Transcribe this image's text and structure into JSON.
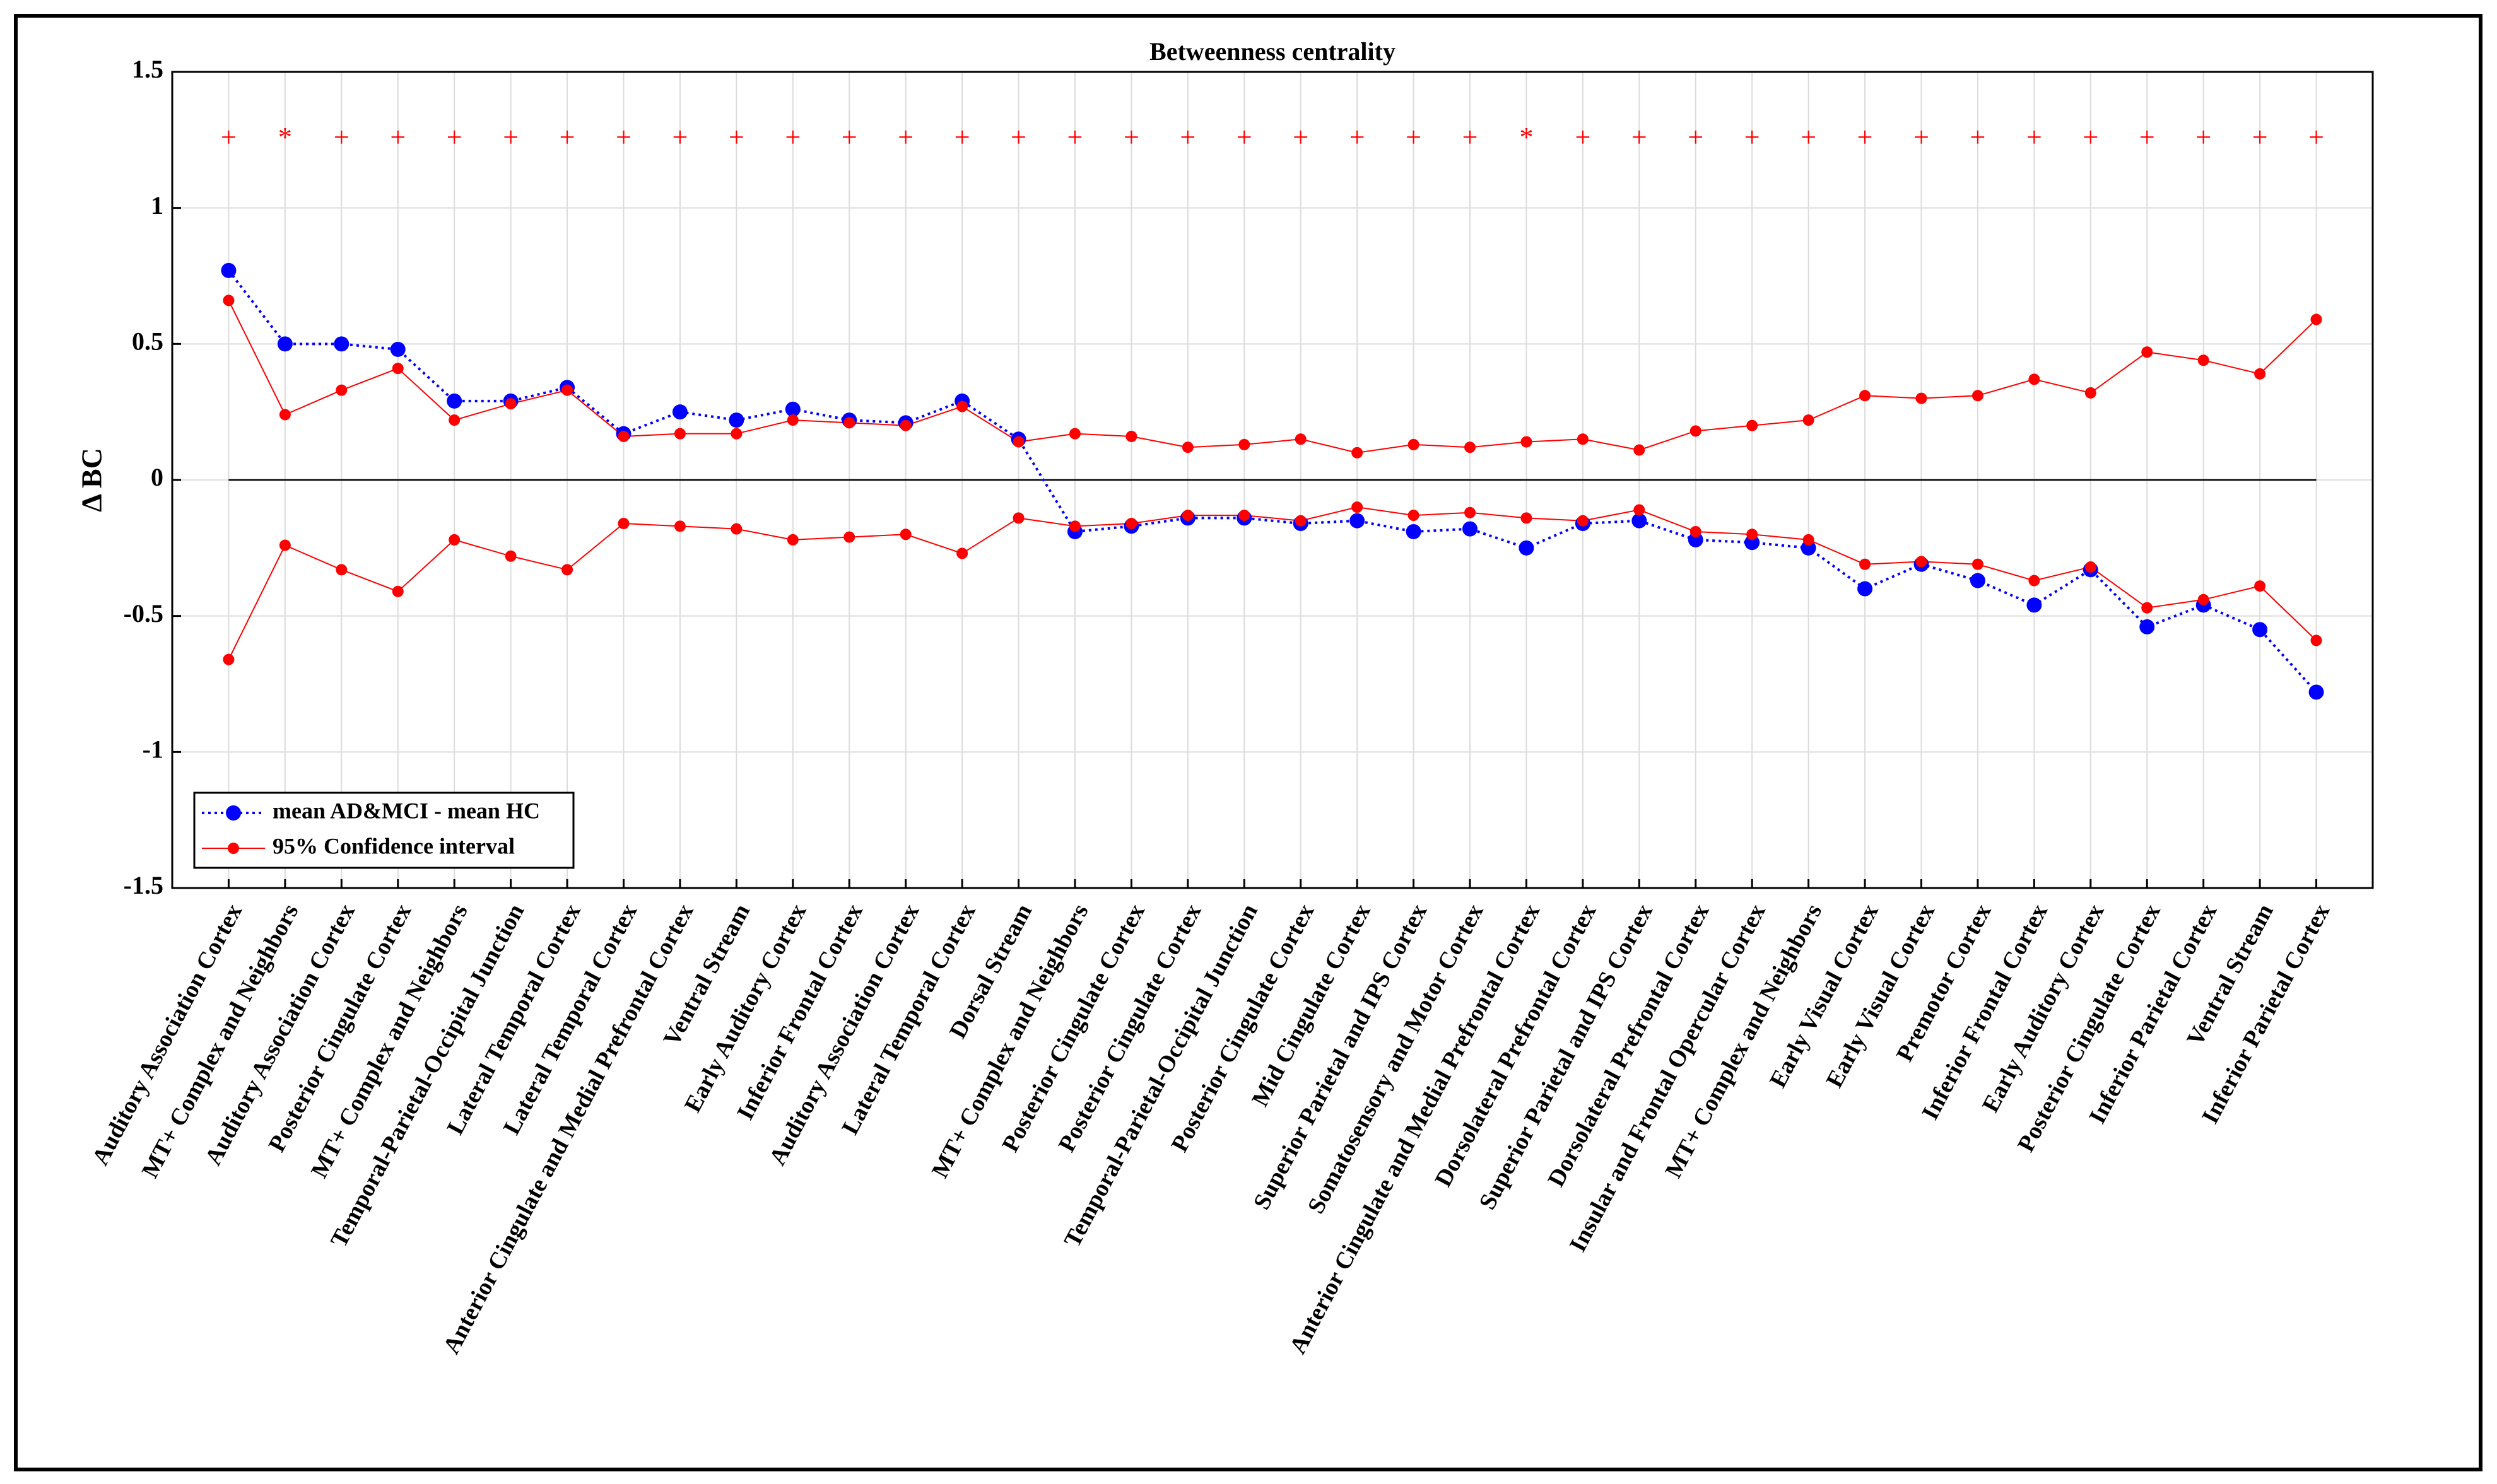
{
  "chart_data": {
    "type": "line",
    "title": "Betweenness centrality",
    "y_label": "Δ BC",
    "categories": [
      "Auditory Association Cortex",
      "MT+ Complex and Neighbors",
      "Auditory Association Cortex",
      "Posterior Cingulate Cortex",
      "MT+ Complex and Neighbors",
      "Temporal-Parietal-Occipital Junction",
      "Lateral Temporal Cortex",
      "Lateral Temporal Cortex",
      "Anterior Cingulate and Medial Prefrontal Cortex",
      "Ventral Stream",
      "Early Auditory Cortex",
      "Inferior Frontal Cortex",
      "Auditory Association Cortex",
      "Lateral Temporal Cortex",
      "Dorsal Stream",
      "MT+ Complex and Neighbors",
      "Posterior Cingulate Cortex",
      "Posterior Cingulate Cortex",
      "Temporal-Parietal-Occipital Junction",
      "Posterior Cingulate Cortex",
      "Mid Cingulate Cortex",
      "Superior Parietal and IPS Cortex",
      "Somatosensory and Motor Cortex",
      "Anterior Cingulate and Medial Prefrontal Cortex",
      "Dorsolateral Prefrontal Cortex",
      "Superior Parietal and IPS Cortex",
      "Dorsolateral Prefrontal Cortex",
      "Insular and Frontal Opercular Cortex",
      "MT+ Complex and Neighbors",
      "Early Visual Cortex",
      "Early Visual Cortex",
      "Premotor Cortex",
      "Inferior Frontal Cortex",
      "Early Auditory Cortex",
      "Posterior Cingulate Cortex",
      "Inferior Parietal Cortex",
      "Ventral Stream",
      "Inferior Parietal Cortex"
    ],
    "significance": [
      "+",
      "*",
      "+",
      "+",
      "+",
      "+",
      "+",
      "+",
      "+",
      "+",
      "+",
      "+",
      "+",
      "+",
      "+",
      "+",
      "+",
      "+",
      "+",
      "+",
      "+",
      "+",
      "+",
      "*",
      "+",
      "+",
      "+",
      "+",
      "+",
      "+",
      "+",
      "+",
      "+",
      "+",
      "+",
      "+",
      "+",
      "+"
    ],
    "series": [
      {
        "name": "mean AD&MCI - mean HC",
        "color": "#0000ff",
        "values": [
          0.77,
          0.5,
          0.5,
          0.48,
          0.29,
          0.29,
          0.34,
          0.17,
          0.25,
          0.22,
          0.26,
          0.22,
          0.21,
          0.29,
          0.15,
          -0.19,
          -0.17,
          -0.14,
          -0.14,
          -0.16,
          -0.15,
          -0.19,
          -0.18,
          -0.25,
          -0.16,
          -0.15,
          -0.22,
          -0.23,
          -0.25,
          -0.4,
          -0.31,
          -0.37,
          -0.46,
          -0.33,
          -0.54,
          -0.46,
          -0.55,
          -0.78
        ]
      },
      {
        "name": "95% Confidence interval",
        "color": "#ff0000",
        "upper": [
          0.66,
          0.24,
          0.33,
          0.41,
          0.22,
          0.28,
          0.33,
          0.16,
          0.17,
          0.17,
          0.22,
          0.21,
          0.2,
          0.27,
          0.14,
          0.17,
          0.16,
          0.12,
          0.13,
          0.15,
          0.1,
          0.13,
          0.12,
          0.14,
          0.15,
          0.11,
          0.18,
          0.2,
          0.22,
          0.31,
          0.3,
          0.31,
          0.37,
          0.32,
          0.47,
          0.44,
          0.39,
          0.59
        ],
        "lower": [
          -0.66,
          -0.24,
          -0.33,
          -0.41,
          -0.22,
          -0.28,
          -0.33,
          -0.16,
          -0.17,
          -0.18,
          -0.22,
          -0.21,
          -0.2,
          -0.27,
          -0.14,
          -0.17,
          -0.16,
          -0.13,
          -0.13,
          -0.15,
          -0.1,
          -0.13,
          -0.12,
          -0.14,
          -0.15,
          -0.11,
          -0.19,
          -0.2,
          -0.22,
          -0.31,
          -0.3,
          -0.31,
          -0.37,
          -0.32,
          -0.47,
          -0.44,
          -0.39,
          -0.59
        ]
      }
    ],
    "ylim": [
      -1.5,
      1.5
    ],
    "yticks": [
      -1.5,
      -1,
      -0.5,
      0,
      0.5,
      1,
      1.5
    ],
    "grid": true,
    "legend": "lower left"
  }
}
